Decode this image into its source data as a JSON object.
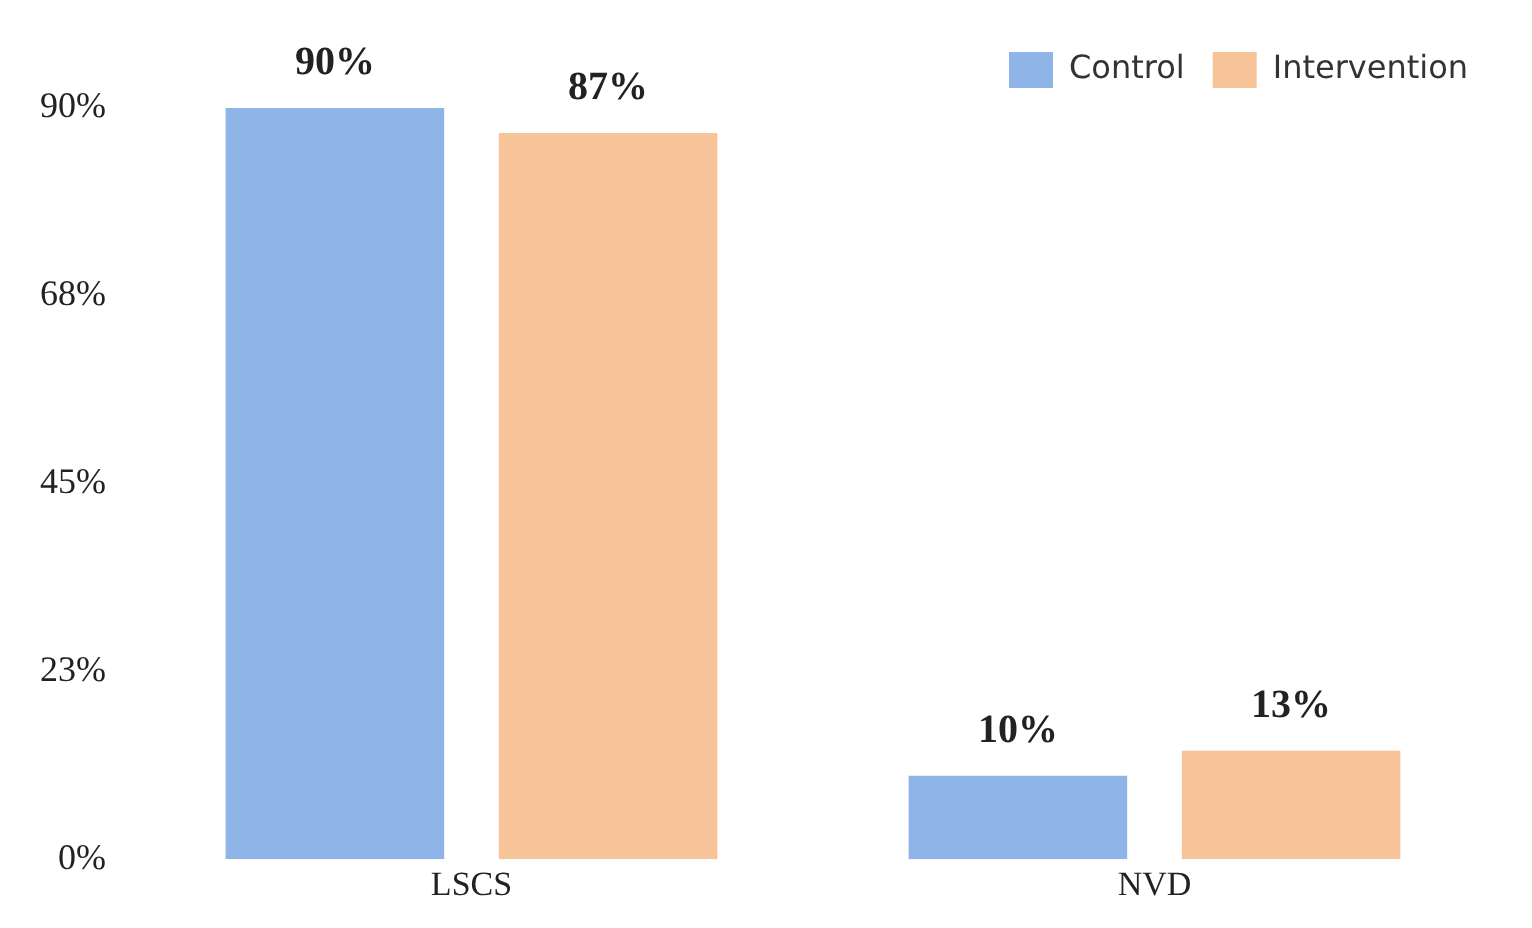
{
  "chart_data": {
    "type": "bar",
    "categories": [
      "LSCS",
      "NVD"
    ],
    "series": [
      {
        "name": "Control",
        "color": "#8eb4e8",
        "values": [
          90,
          10
        ],
        "value_labels": [
          "90%",
          "10%"
        ]
      },
      {
        "name": "Intervention",
        "color": "#f7c49a",
        "values": [
          87,
          13
        ],
        "value_labels": [
          "87%",
          "13%"
        ]
      }
    ],
    "ylim": [
      0,
      90
    ],
    "yticks": [
      {
        "value": 0,
        "label": "0%"
      },
      {
        "value": 22.5,
        "label": "23%"
      },
      {
        "value": 45,
        "label": "45%"
      },
      {
        "value": 67.5,
        "label": "68%"
      },
      {
        "value": 90,
        "label": "90%"
      }
    ],
    "grid": false,
    "legend": "top right"
  }
}
